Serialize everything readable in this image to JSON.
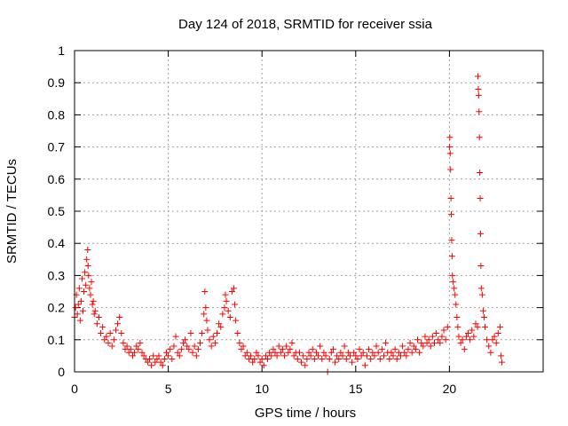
{
  "chart_data": {
    "type": "scatter",
    "title": "Day 124 of 2018, SRMTID for receiver ssia",
    "xlabel": "GPS time / hours",
    "ylabel": "SRMTID / TECUs",
    "xlim": [
      0,
      25
    ],
    "ylim": [
      0,
      1
    ],
    "grid": true,
    "x_ticks": [
      0,
      5,
      10,
      15,
      20
    ],
    "x_tick_labels": [
      "0",
      "5",
      "10",
      "15",
      "20"
    ],
    "y_ticks": [
      0,
      0.1,
      0.2,
      0.3,
      0.4,
      0.5,
      0.6,
      0.7,
      0.8,
      0.9,
      1
    ],
    "y_tick_labels": [
      "0",
      "0.1",
      "0.2",
      "0.3",
      "0.4",
      "0.5",
      "0.6",
      "0.7",
      "0.8",
      "0.9",
      "1"
    ],
    "marker": "+",
    "series": [
      {
        "name": "SRMTID",
        "color": "#ff0000",
        "points": [
          [
            0.0,
            0.17
          ],
          [
            0.05,
            0.2
          ],
          [
            0.1,
            0.24
          ],
          [
            0.15,
            0.18
          ],
          [
            0.2,
            0.21
          ],
          [
            0.25,
            0.26
          ],
          [
            0.3,
            0.16
          ],
          [
            0.35,
            0.22
          ],
          [
            0.4,
            0.29
          ],
          [
            0.45,
            0.19
          ],
          [
            0.5,
            0.25
          ],
          [
            0.55,
            0.31
          ],
          [
            0.6,
            0.27
          ],
          [
            0.65,
            0.35
          ],
          [
            0.7,
            0.38
          ],
          [
            0.72,
            0.33
          ],
          [
            0.75,
            0.3
          ],
          [
            0.8,
            0.26
          ],
          [
            0.85,
            0.24
          ],
          [
            0.9,
            0.28
          ],
          [
            0.95,
            0.21
          ],
          [
            1.0,
            0.22
          ],
          [
            1.05,
            0.18
          ],
          [
            1.1,
            0.19
          ],
          [
            1.2,
            0.15
          ],
          [
            1.3,
            0.17
          ],
          [
            1.4,
            0.12
          ],
          [
            1.5,
            0.14
          ],
          [
            1.6,
            0.1
          ],
          [
            1.7,
            0.11
          ],
          [
            1.8,
            0.09
          ],
          [
            1.9,
            0.12
          ],
          [
            2.0,
            0.08
          ],
          [
            2.1,
            0.1
          ],
          [
            2.2,
            0.13
          ],
          [
            2.3,
            0.15
          ],
          [
            2.4,
            0.17
          ],
          [
            2.5,
            0.12
          ],
          [
            2.6,
            0.09
          ],
          [
            2.7,
            0.07
          ],
          [
            2.8,
            0.08
          ],
          [
            2.9,
            0.06
          ],
          [
            3.0,
            0.07
          ],
          [
            3.1,
            0.05
          ],
          [
            3.2,
            0.06
          ],
          [
            3.3,
            0.08
          ],
          [
            3.4,
            0.07
          ],
          [
            3.5,
            0.09
          ],
          [
            3.6,
            0.06
          ],
          [
            3.7,
            0.05
          ],
          [
            3.8,
            0.04
          ],
          [
            3.9,
            0.03
          ],
          [
            4.0,
            0.04
          ],
          [
            4.1,
            0.02
          ],
          [
            4.2,
            0.05
          ],
          [
            4.3,
            0.03
          ],
          [
            4.4,
            0.04
          ],
          [
            4.5,
            0.05
          ],
          [
            4.6,
            0.03
          ],
          [
            4.7,
            0.02
          ],
          [
            4.8,
            0.04
          ],
          [
            4.9,
            0.06
          ],
          [
            5.0,
            0.05
          ],
          [
            5.1,
            0.07
          ],
          [
            5.2,
            0.04
          ],
          [
            5.3,
            0.08
          ],
          [
            5.4,
            0.11
          ],
          [
            5.5,
            0.06
          ],
          [
            5.6,
            0.05
          ],
          [
            5.7,
            0.07
          ],
          [
            5.8,
            0.09
          ],
          [
            5.9,
            0.1
          ],
          [
            6.0,
            0.08
          ],
          [
            6.1,
            0.07
          ],
          [
            6.2,
            0.12
          ],
          [
            6.3,
            0.06
          ],
          [
            6.4,
            0.08
          ],
          [
            6.5,
            0.05
          ],
          [
            6.6,
            0.07
          ],
          [
            6.7,
            0.09
          ],
          [
            6.8,
            0.12
          ],
          [
            6.9,
            0.18
          ],
          [
            6.95,
            0.25
          ],
          [
            7.0,
            0.2
          ],
          [
            7.05,
            0.16
          ],
          [
            7.1,
            0.13
          ],
          [
            7.2,
            0.1
          ],
          [
            7.3,
            0.08
          ],
          [
            7.4,
            0.11
          ],
          [
            7.5,
            0.09
          ],
          [
            7.6,
            0.12
          ],
          [
            7.7,
            0.15
          ],
          [
            7.8,
            0.14
          ],
          [
            7.9,
            0.18
          ],
          [
            8.0,
            0.2
          ],
          [
            8.05,
            0.24
          ],
          [
            8.1,
            0.22
          ],
          [
            8.2,
            0.19
          ],
          [
            8.3,
            0.17
          ],
          [
            8.4,
            0.25
          ],
          [
            8.5,
            0.26
          ],
          [
            8.55,
            0.21
          ],
          [
            8.6,
            0.16
          ],
          [
            8.7,
            0.12
          ],
          [
            8.8,
            0.09
          ],
          [
            8.9,
            0.07
          ],
          [
            9.0,
            0.08
          ],
          [
            9.1,
            0.05
          ],
          [
            9.2,
            0.06
          ],
          [
            9.3,
            0.04
          ],
          [
            9.4,
            0.05
          ],
          [
            9.5,
            0.03
          ],
          [
            9.6,
            0.04
          ],
          [
            9.7,
            0.06
          ],
          [
            9.8,
            0.05
          ],
          [
            9.9,
            0.03
          ],
          [
            10.0,
            0.04
          ],
          [
            10.1,
            0.02
          ],
          [
            10.2,
            0.05
          ],
          [
            10.3,
            0.04
          ],
          [
            10.4,
            0.06
          ],
          [
            10.5,
            0.05
          ],
          [
            10.6,
            0.07
          ],
          [
            10.7,
            0.06
          ],
          [
            10.8,
            0.05
          ],
          [
            10.9,
            0.08
          ],
          [
            11.0,
            0.06
          ],
          [
            11.1,
            0.07
          ],
          [
            11.2,
            0.05
          ],
          [
            11.3,
            0.08
          ],
          [
            11.4,
            0.06
          ],
          [
            11.5,
            0.07
          ],
          [
            11.6,
            0.09
          ],
          [
            11.7,
            0.05
          ],
          [
            11.8,
            0.06
          ],
          [
            11.9,
            0.04
          ],
          [
            12.0,
            0.06
          ],
          [
            12.1,
            0.03
          ],
          [
            12.2,
            0.05
          ],
          [
            12.3,
            0.02
          ],
          [
            12.4,
            0.04
          ],
          [
            12.5,
            0.06
          ],
          [
            12.6,
            0.05
          ],
          [
            12.7,
            0.07
          ],
          [
            12.8,
            0.04
          ],
          [
            12.9,
            0.06
          ],
          [
            13.0,
            0.05
          ],
          [
            13.1,
            0.08
          ],
          [
            13.2,
            0.04
          ],
          [
            13.3,
            0.06
          ],
          [
            13.4,
            0.05
          ],
          [
            13.5,
            0.0
          ],
          [
            13.6,
            0.04
          ],
          [
            13.7,
            0.06
          ],
          [
            13.8,
            0.07
          ],
          [
            13.9,
            0.03
          ],
          [
            14.0,
            0.05
          ],
          [
            14.1,
            0.04
          ],
          [
            14.2,
            0.06
          ],
          [
            14.3,
            0.05
          ],
          [
            14.4,
            0.08
          ],
          [
            14.5,
            0.04
          ],
          [
            14.6,
            0.06
          ],
          [
            14.7,
            0.05
          ],
          [
            14.8,
            0.03
          ],
          [
            14.9,
            0.06
          ],
          [
            15.0,
            0.05
          ],
          [
            15.1,
            0.04
          ],
          [
            15.2,
            0.07
          ],
          [
            15.3,
            0.05
          ],
          [
            15.4,
            0.06
          ],
          [
            15.5,
            0.02
          ],
          [
            15.6,
            0.05
          ],
          [
            15.7,
            0.07
          ],
          [
            15.8,
            0.04
          ],
          [
            15.9,
            0.06
          ],
          [
            16.0,
            0.05
          ],
          [
            16.1,
            0.08
          ],
          [
            16.2,
            0.06
          ],
          [
            16.3,
            0.04
          ],
          [
            16.4,
            0.07
          ],
          [
            16.5,
            0.05
          ],
          [
            16.6,
            0.09
          ],
          [
            16.7,
            0.06
          ],
          [
            16.8,
            0.04
          ],
          [
            16.9,
            0.06
          ],
          [
            17.0,
            0.05
          ],
          [
            17.1,
            0.07
          ],
          [
            17.2,
            0.04
          ],
          [
            17.3,
            0.06
          ],
          [
            17.4,
            0.05
          ],
          [
            17.5,
            0.08
          ],
          [
            17.6,
            0.06
          ],
          [
            17.7,
            0.05
          ],
          [
            17.8,
            0.07
          ],
          [
            17.9,
            0.09
          ],
          [
            18.0,
            0.06
          ],
          [
            18.1,
            0.08
          ],
          [
            18.2,
            0.07
          ],
          [
            18.3,
            0.1
          ],
          [
            18.4,
            0.06
          ],
          [
            18.5,
            0.09
          ],
          [
            18.6,
            0.08
          ],
          [
            18.7,
            0.11
          ],
          [
            18.8,
            0.09
          ],
          [
            18.9,
            0.1
          ],
          [
            19.0,
            0.08
          ],
          [
            19.1,
            0.11
          ],
          [
            19.2,
            0.09
          ],
          [
            19.3,
            0.12
          ],
          [
            19.4,
            0.1
          ],
          [
            19.5,
            0.09
          ],
          [
            19.6,
            0.11
          ],
          [
            19.7,
            0.13
          ],
          [
            19.8,
            0.1
          ],
          [
            19.9,
            0.14
          ],
          [
            20.0,
            0.7
          ],
          [
            20.02,
            0.73
          ],
          [
            20.04,
            0.68
          ],
          [
            20.06,
            0.63
          ],
          [
            20.08,
            0.54
          ],
          [
            20.1,
            0.49
          ],
          [
            20.12,
            0.41
          ],
          [
            20.14,
            0.36
          ],
          [
            20.16,
            0.3
          ],
          [
            20.2,
            0.28
          ],
          [
            20.25,
            0.26
          ],
          [
            20.3,
            0.24
          ],
          [
            20.35,
            0.21
          ],
          [
            20.4,
            0.17
          ],
          [
            20.45,
            0.14
          ],
          [
            20.5,
            0.11
          ],
          [
            20.6,
            0.09
          ],
          [
            20.7,
            0.1
          ],
          [
            20.8,
            0.07
          ],
          [
            20.9,
            0.11
          ],
          [
            21.0,
            0.12
          ],
          [
            21.1,
            0.1
          ],
          [
            21.2,
            0.13
          ],
          [
            21.3,
            0.11
          ],
          [
            21.4,
            0.15
          ],
          [
            21.5,
            0.14
          ],
          [
            21.52,
            0.92
          ],
          [
            21.54,
            0.88
          ],
          [
            21.56,
            0.86
          ],
          [
            21.58,
            0.81
          ],
          [
            21.6,
            0.73
          ],
          [
            21.62,
            0.62
          ],
          [
            21.64,
            0.54
          ],
          [
            21.66,
            0.43
          ],
          [
            21.68,
            0.33
          ],
          [
            21.7,
            0.26
          ],
          [
            21.75,
            0.24
          ],
          [
            21.8,
            0.19
          ],
          [
            21.85,
            0.17
          ],
          [
            21.9,
            0.14
          ],
          [
            22.0,
            0.1
          ],
          [
            22.1,
            0.08
          ],
          [
            22.2,
            0.06
          ],
          [
            22.3,
            0.1
          ],
          [
            22.4,
            0.11
          ],
          [
            22.5,
            0.09
          ],
          [
            22.6,
            0.12
          ],
          [
            22.7,
            0.14
          ],
          [
            22.75,
            0.05
          ],
          [
            22.8,
            0.03
          ]
        ]
      }
    ]
  }
}
